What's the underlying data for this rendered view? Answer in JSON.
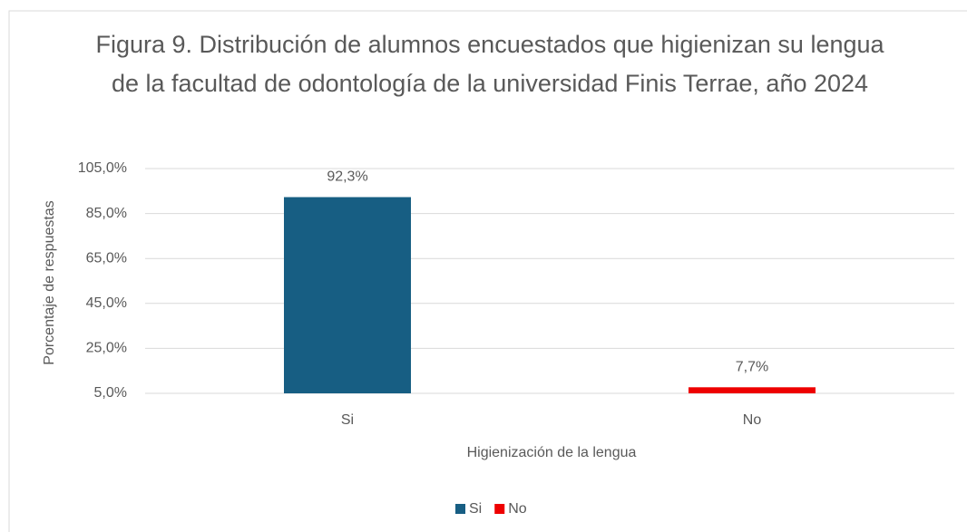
{
  "chart_data": {
    "type": "bar",
    "title": "Figura 9. Distribución de alumnos encuestados que higienizan su lengua de la facultad de odontología de la universidad Finis Terrae, año 2024",
    "x_label": "Higienización de la lengua",
    "y_label": "Porcentaje de respuestas",
    "categories": [
      "Si",
      "No"
    ],
    "values": [
      92.3,
      7.7
    ],
    "value_labels": [
      "92,3%",
      "7,7%"
    ],
    "colors": [
      "#175e83",
      "#ee0000"
    ],
    "ylim": [
      5,
      105
    ],
    "yticks": [
      {
        "value": 5,
        "label": "5,0%"
      },
      {
        "value": 25,
        "label": "25,0%"
      },
      {
        "value": 45,
        "label": "45,0%"
      },
      {
        "value": 65,
        "label": "65,0%"
      },
      {
        "value": 85,
        "label": "85,0%"
      },
      {
        "value": 105,
        "label": "105,0%"
      }
    ],
    "grid": true,
    "legend": "bottom"
  }
}
